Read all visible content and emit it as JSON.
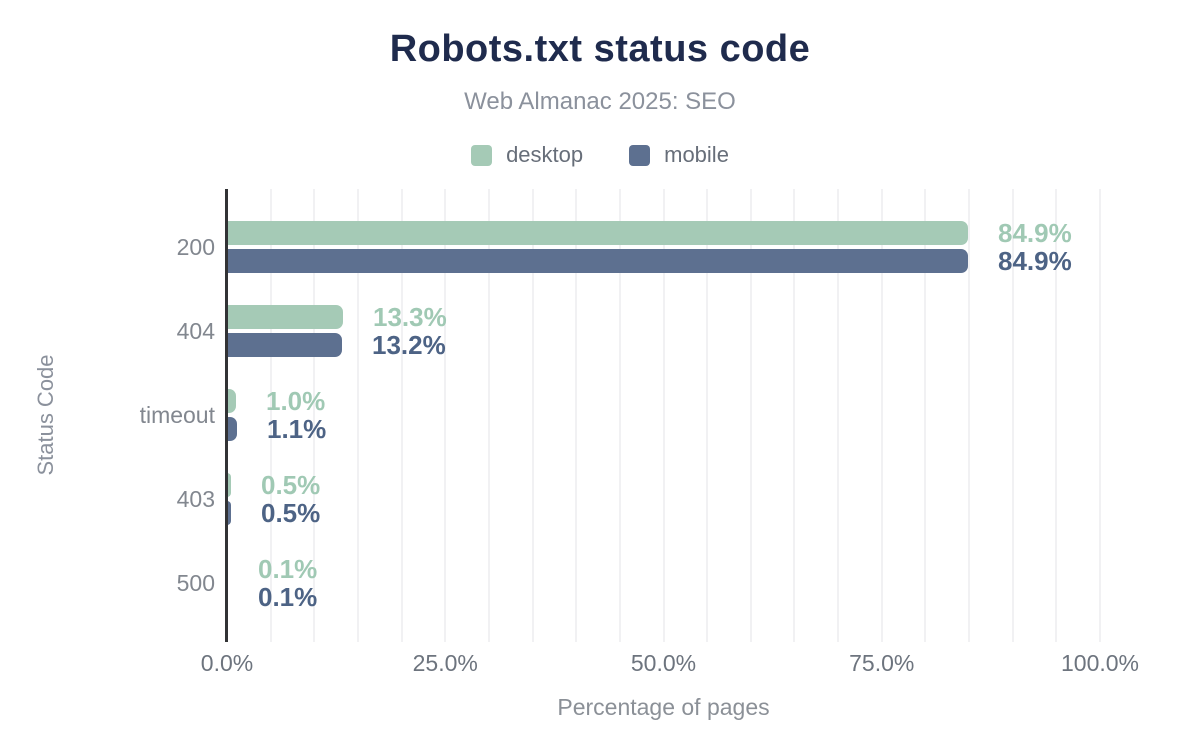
{
  "header": {
    "title": "Robots.txt status code",
    "subtitle": "Web Almanac 2025: SEO"
  },
  "chart_data": {
    "type": "bar",
    "orientation": "horizontal",
    "title": "Robots.txt status code",
    "subtitle": "Web Almanac 2025: SEO",
    "categories": [
      "200",
      "404",
      "timeout",
      "403",
      "500"
    ],
    "series": [
      {
        "name": "desktop",
        "color": "#a5cab6",
        "label_color": "#a0c9b4",
        "values": [
          84.9,
          13.3,
          1.0,
          0.5,
          0.1
        ],
        "labels": [
          "84.9%",
          "13.3%",
          "1.0%",
          "0.5%",
          "0.1%"
        ]
      },
      {
        "name": "mobile",
        "color": "#5d7090",
        "label_color": "#4d6385",
        "values": [
          84.9,
          13.2,
          1.1,
          0.5,
          0.1
        ],
        "labels": [
          "84.9%",
          "13.2%",
          "1.1%",
          "0.5%",
          "0.1%"
        ]
      }
    ],
    "xlabel": "Percentage of pages",
    "ylabel": "Status Code",
    "xlim": [
      0,
      100
    ],
    "x_ticks": [
      {
        "value": 0,
        "label": "0.0%"
      },
      {
        "value": 25,
        "label": "25.0%"
      },
      {
        "value": 50,
        "label": "50.0%"
      },
      {
        "value": 75,
        "label": "75.0%"
      },
      {
        "value": 100,
        "label": "100.0%"
      }
    ],
    "grid": "vertical minor gridlines every 5%",
    "legend_position": "top-center"
  },
  "colors": {
    "background": "#ffffff",
    "title": "#1f2b4d",
    "subtitle": "#8b919c",
    "axis_line": "#323335",
    "gridline": "#f1f1f3",
    "tick_label": "#6d747e",
    "category_label": "#82878f"
  }
}
